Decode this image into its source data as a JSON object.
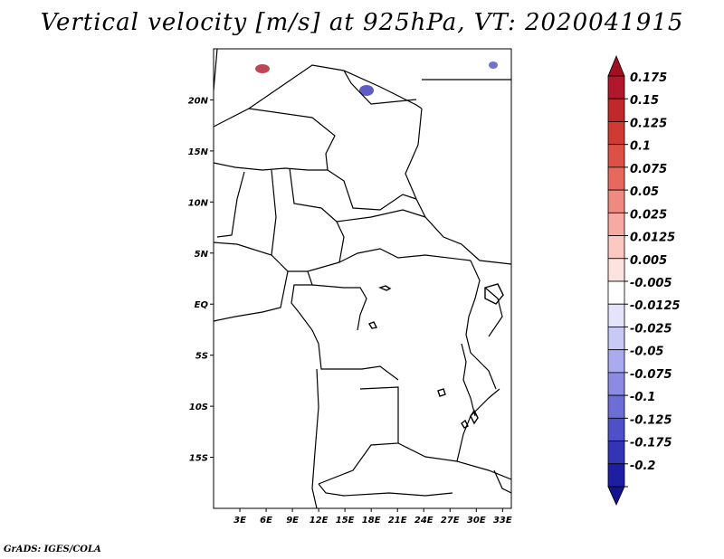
{
  "title": "Vertical velocity [m/s] at 925hPa, VT: 2020041915",
  "footer": "GrADS: IGES/COLA",
  "map": {
    "variable": "vertical velocity",
    "units": "m/s",
    "level": "925hPa",
    "valid_time": "2020041915",
    "lon_range": [
      0,
      34
    ],
    "lat_range": [
      -20,
      25
    ],
    "lon_ticks": [
      {
        "value": 3,
        "label": "3E"
      },
      {
        "value": 6,
        "label": "6E"
      },
      {
        "value": 9,
        "label": "9E"
      },
      {
        "value": 12,
        "label": "12E"
      },
      {
        "value": 15,
        "label": "15E"
      },
      {
        "value": 18,
        "label": "18E"
      },
      {
        "value": 21,
        "label": "21E"
      },
      {
        "value": 24,
        "label": "24E"
      },
      {
        "value": 27,
        "label": "27E"
      },
      {
        "value": 30,
        "label": "30E"
      },
      {
        "value": 33,
        "label": "33E"
      }
    ],
    "lat_ticks": [
      {
        "value": 20,
        "label": "20N"
      },
      {
        "value": 15,
        "label": "15N"
      },
      {
        "value": 10,
        "label": "10N"
      },
      {
        "value": 5,
        "label": "5N"
      },
      {
        "value": 0,
        "label": "EQ"
      },
      {
        "value": -5,
        "label": "5S"
      },
      {
        "value": -10,
        "label": "10S"
      },
      {
        "value": -15,
        "label": "15S"
      }
    ]
  },
  "colorbar": {
    "levels": [
      {
        "label": "0.175",
        "color": "#b2182b"
      },
      {
        "label": "0.15",
        "color": "#c0282c"
      },
      {
        "label": "0.125",
        "color": "#cf3b33"
      },
      {
        "label": "0.1",
        "color": "#dc5046"
      },
      {
        "label": "0.075",
        "color": "#e6695e"
      },
      {
        "label": "0.05",
        "color": "#ef8a80"
      },
      {
        "label": "0.025",
        "color": "#f6aaa2"
      },
      {
        "label": "0.0125",
        "color": "#fbc9c2"
      },
      {
        "label": "0.005",
        "color": "#fde3df"
      },
      {
        "label": "-0.005",
        "color": "#ffffff"
      },
      {
        "label": "-0.0125",
        "color": "#e3e3fb"
      },
      {
        "label": "-0.025",
        "color": "#c9c9f5"
      },
      {
        "label": "-0.05",
        "color": "#aaaaee"
      },
      {
        "label": "-0.075",
        "color": "#8b8be3"
      },
      {
        "label": "-0.1",
        "color": "#6d6dd6"
      },
      {
        "label": "-0.125",
        "color": "#4f4fc8"
      },
      {
        "label": "-0.175",
        "color": "#3434b6"
      },
      {
        "label": "-0.2",
        "color": "#1e1ea3"
      }
    ],
    "top_tip_color": "#a01020",
    "bottom_tip_color": "#14148f"
  }
}
